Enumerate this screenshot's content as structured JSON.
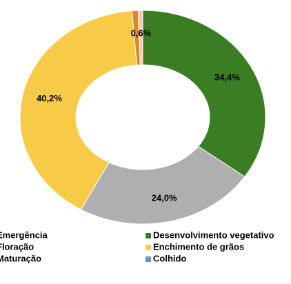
{
  "chart_data": {
    "type": "pie",
    "categories": [
      "Desenvolvimento vegetativo",
      "Maturação",
      "Enchimento de grãos",
      "Floração",
      "Emergência",
      "Colhido"
    ],
    "values": [
      34.4,
      24.0,
      40.2,
      0.8,
      0.6,
      0
    ],
    "value_labels": [
      "34,4%",
      "24,0%",
      "40,2%",
      null,
      "0,6%",
      null
    ],
    "colors": [
      "#3b7d23",
      "#afafaf",
      "#f7ca47",
      "#d8892a",
      "#f3cba8",
      "#5b9bd5"
    ]
  }
}
